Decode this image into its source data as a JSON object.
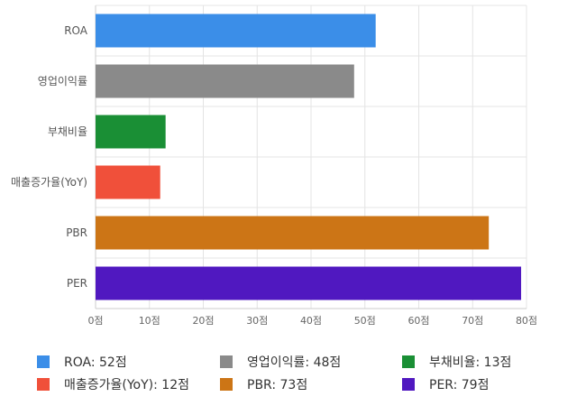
{
  "chart_data": {
    "type": "bar",
    "orientation": "horizontal",
    "categories": [
      "ROA",
      "영업이익률",
      "부채비율",
      "매출증가율(YoY)",
      "PBR",
      "PER"
    ],
    "values": [
      52,
      48,
      13,
      12,
      73,
      79
    ],
    "colors": [
      "#3b8ee8",
      "#8a8a8a",
      "#1a8f35",
      "#f0503a",
      "#cc7516",
      "#5018c0"
    ],
    "xlim": [
      0,
      80
    ],
    "xticks": [
      0,
      10,
      20,
      30,
      40,
      50,
      60,
      70,
      80
    ],
    "tick_suffix": "점",
    "grid": true,
    "legend_position": "bottom"
  },
  "legend": [
    {
      "text": "ROA: 52점"
    },
    {
      "text": "영업이익률: 48점"
    },
    {
      "text": "부채비율: 13점"
    },
    {
      "text": "매출증가율(YoY): 12점"
    },
    {
      "text": "PBR: 73점"
    },
    {
      "text": "PER: 79점"
    }
  ]
}
